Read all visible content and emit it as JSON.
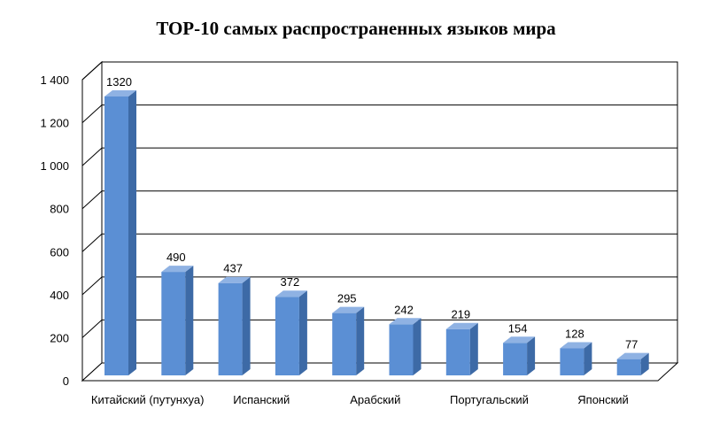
{
  "chart_data": {
    "type": "bar",
    "title": "TOP-10 самых распространенных языков мира",
    "xlabel": "",
    "ylabel": "",
    "ylim": [
      0,
      1400
    ],
    "y_ticks": [
      "0",
      "200",
      "400",
      "600",
      "800",
      "1 000",
      "1 200",
      "1 400"
    ],
    "category_labels_shown": [
      {
        "index": 0,
        "label": "Китайский (путунхуа)"
      },
      {
        "index": 2,
        "label": "Испанский"
      },
      {
        "index": 4,
        "label": "Арабский"
      },
      {
        "index": 6,
        "label": "Португальский"
      },
      {
        "index": 8,
        "label": "Японский"
      }
    ],
    "values": [
      1320,
      490,
      437,
      372,
      295,
      242,
      219,
      154,
      128,
      77
    ],
    "data_labels": [
      "1320",
      "490",
      "437",
      "372",
      "295",
      "242",
      "219",
      "154",
      "128",
      "77"
    ],
    "grid": true,
    "legend": "none",
    "colors": {
      "bar_front": "#5b8fd4",
      "bar_side": "#3d6aa6",
      "bar_top": "#8fb2e3",
      "grid": "#000000"
    }
  }
}
